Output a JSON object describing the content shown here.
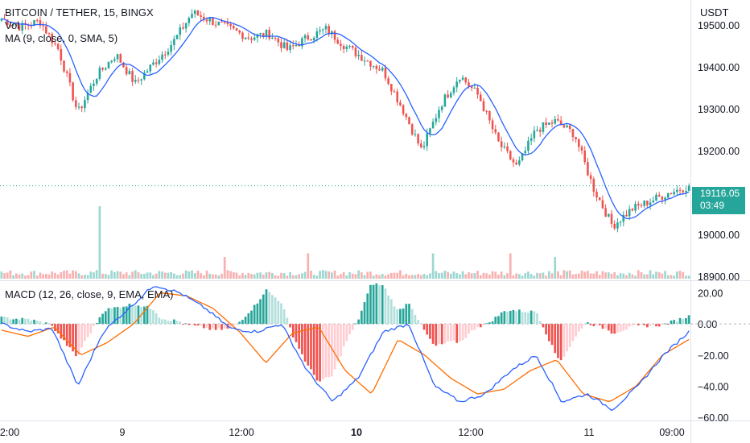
{
  "header": {
    "symbol_line": "BITCOIN / TETHER, 15, BINGX",
    "vol_label": "Vol",
    "ma_label": "MA (9, close, 0, SMA, 5)",
    "macd_label": "MACD (12, 26, close, 9, EMA, EMA)"
  },
  "price_axis": {
    "currency": "USDT",
    "ticks": [
      "19500.00",
      "19400.00",
      "19300.00",
      "19200.00",
      "19000.00",
      "18900.00"
    ]
  },
  "last_price": {
    "value": "19116.05",
    "countdown": "03:49"
  },
  "macd_axis": {
    "ticks": [
      "20.00",
      "0.00",
      "−20.00",
      "−40.00",
      "−60.00"
    ]
  },
  "time_axis": {
    "labels": [
      "2:00",
      "9",
      "12:00",
      "10",
      "12:00",
      "11",
      "09:00"
    ]
  },
  "colors": {
    "up": "#26a69a",
    "down": "#ef5350",
    "ma": "#2962ff",
    "signal": "#ff6d00",
    "macd": "#2962ff"
  },
  "chart_data": [
    {
      "type": "candlestick",
      "title": "BITCOIN / TETHER, 15, BINGX",
      "y_unit": "USDT",
      "ylim": [
        18890,
        19560
      ],
      "x": [
        "2:00",
        "9",
        "12:00",
        "10",
        "12:00",
        "11",
        "09:00"
      ],
      "close_anchors": [
        19515,
        19495,
        19510,
        19440,
        19290,
        19380,
        19430,
        19360,
        19410,
        19460,
        19530,
        19510,
        19490,
        19470,
        19480,
        19440,
        19470,
        19490,
        19450,
        19420,
        19390,
        19300,
        19200,
        19310,
        19380,
        19330,
        19220,
        19160,
        19250,
        19270,
        19240,
        19110,
        19020,
        19060,
        19080,
        19100,
        19116
      ],
      "series": [
        {
          "name": "MA (9, close, 0, SMA, 5)",
          "kind": "line"
        },
        {
          "name": "Vol",
          "kind": "bars",
          "spikes": [
            {
              "x": "9",
              "value": "high"
            },
            {
              "x": "10",
              "value": "medium"
            },
            {
              "x": "11",
              "value": "medium"
            }
          ]
        }
      ],
      "last_value": 19116.05
    },
    {
      "type": "line",
      "title": "MACD (12, 26, close, 9, EMA, EMA)",
      "ylim": [
        -62,
        28
      ],
      "macd_anchors": [
        0,
        -5,
        -3,
        -40,
        -5,
        10,
        25,
        20,
        10,
        -3,
        -5,
        0,
        -30,
        -50,
        -35,
        -5,
        0,
        -40,
        -50,
        -45,
        -30,
        -20,
        -50,
        -45,
        -55,
        -40,
        -20,
        -5
      ],
      "signal_anchors": [
        -4,
        -8,
        -2,
        -20,
        -12,
        0,
        20,
        18,
        10,
        -5,
        -25,
        -6,
        -2,
        -30,
        -45,
        -10,
        -20,
        -35,
        -45,
        -42,
        -30,
        -23,
        -45,
        -50,
        -40,
        -20,
        -10
      ],
      "series": [
        {
          "name": "MACD",
          "kind": "line"
        },
        {
          "name": "Signal",
          "kind": "line"
        },
        {
          "name": "Histogram",
          "kind": "bars"
        }
      ]
    }
  ]
}
